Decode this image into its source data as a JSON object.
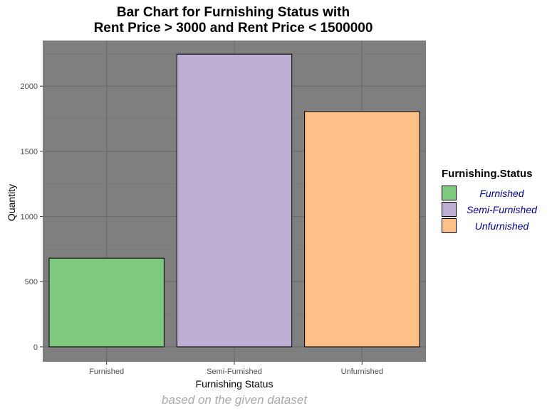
{
  "chart_data": {
    "type": "bar",
    "title": [
      "Bar Chart for Furnishing Status with",
      "Rent Price > 3000 and Rent Price < 1500000"
    ],
    "xlabel": "Furnishing Status",
    "ylabel": "Quantity",
    "caption": "based on the given dataset",
    "categories": [
      "Furnished",
      "Semi-Furnished",
      "Unfurnished"
    ],
    "values": [
      680,
      2245,
      1805
    ],
    "colors": [
      "#7fc97f",
      "#beaed4",
      "#fdc086"
    ],
    "ylim": [
      -115,
      2350
    ],
    "yticks": [
      0,
      500,
      1000,
      1500,
      2000
    ],
    "ytick_labels": [
      "0",
      "500",
      "1000",
      "1500",
      "2000"
    ],
    "grid": true,
    "panel_background": "#7f7f7f",
    "legend": {
      "title": "Furnishing.Status",
      "position": "right",
      "items": [
        "Furnished",
        "Semi-Furnished",
        "Unfurnished"
      ],
      "label_color": "#00008b"
    }
  }
}
